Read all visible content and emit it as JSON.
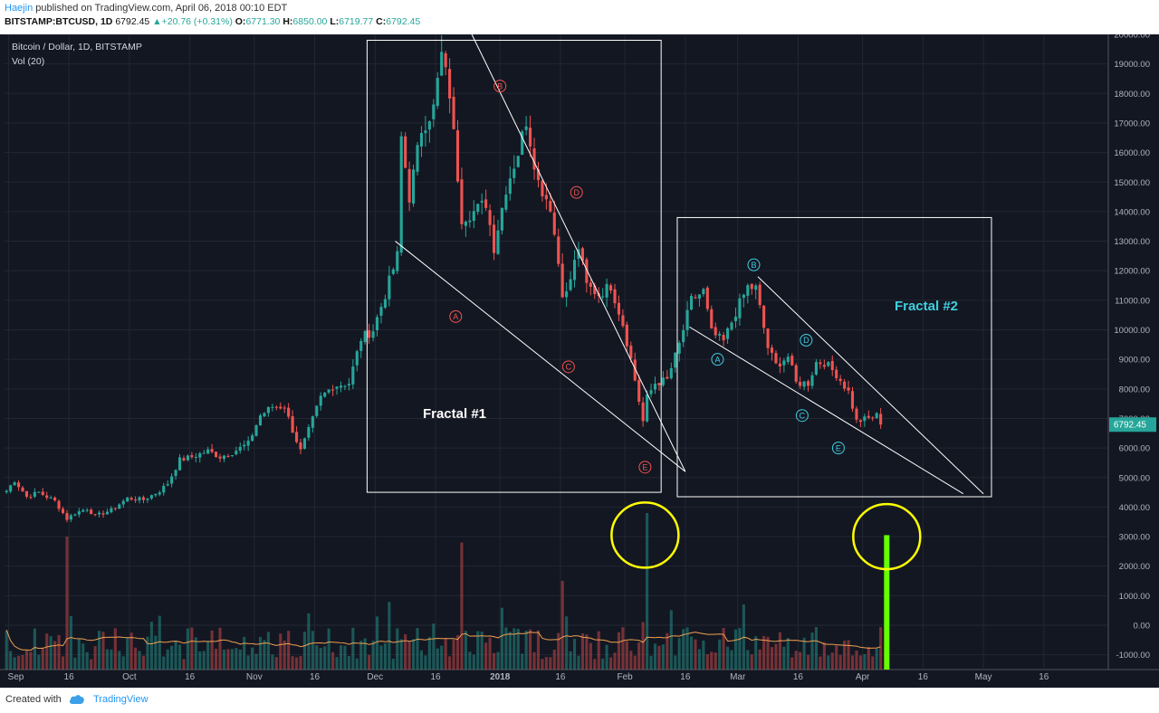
{
  "header": {
    "author": "Haejin",
    "published_text": " published on TradingView.com, April 06, 2018 00:10 EDT",
    "symbol": "BITSTAMP:BTCUSD, 1D",
    "last": "6792.45",
    "change": "+20.76 (+0.31%)",
    "o_label": "O:",
    "o_value": "6771.30",
    "h_label": "H:",
    "h_value": "6850.00",
    "l_label": "L:",
    "l_value": "6719.77",
    "c_label": "C:",
    "c_value": "6792.45"
  },
  "legend": {
    "title": "Bitcoin / Dollar, 1D, BITSTAMP",
    "volume": "Vol (20)"
  },
  "footer": {
    "created": "Created with",
    "brand": "TradingView"
  },
  "colors": {
    "background": "#131722",
    "up": "#26a69a",
    "down": "#ef5350",
    "grid": "#232732",
    "axis_text": "#b2b5be",
    "drawing": "#ffffff",
    "fractal1_labels": "#ef5350",
    "fractal2_labels": "#3fcfe0",
    "highlight_circle": "#ffff00",
    "projected_volume": "#66ff00",
    "volume_ma": "#f0a050"
  },
  "chart_data": {
    "type": "candlestick",
    "title": "Bitcoin / Dollar, 1D, BITSTAMP",
    "price_axis": {
      "ticks": [
        "20000.00",
        "19000.00",
        "18000.00",
        "17000.00",
        "16000.00",
        "15000.00",
        "14000.00",
        "13000.00",
        "12000.00",
        "11000.00",
        "10000.00",
        "9000.00",
        "8000.00",
        "7000.00",
        "6000.00",
        "5000.00",
        "4000.00",
        "3000.00",
        "2000.00",
        "1000.00",
        "0.00",
        "-1000.00"
      ],
      "range": [
        -1500,
        20000
      ]
    },
    "time_axis": {
      "labels": [
        "Sep",
        "16",
        "Oct",
        "16",
        "Nov",
        "16",
        "Dec",
        "16",
        "2018",
        "16",
        "Feb",
        "16",
        "Mar",
        "16",
        "Apr",
        "16",
        "May",
        "16"
      ],
      "range": [
        "2017-08-31",
        "2018-06-01"
      ]
    },
    "last_price": "6792.45",
    "price_waypoints": [
      [
        "2017-08-31",
        4550
      ],
      [
        "2017-09-02",
        4900
      ],
      [
        "2017-09-05",
        4350
      ],
      [
        "2017-09-08",
        4500
      ],
      [
        "2017-09-12",
        4200
      ],
      [
        "2017-09-15",
        3600
      ],
      [
        "2017-09-17",
        3800
      ],
      [
        "2017-09-20",
        3950
      ],
      [
        "2017-09-22",
        3700
      ],
      [
        "2017-09-26",
        3900
      ],
      [
        "2017-09-30",
        4300
      ],
      [
        "2017-10-04",
        4250
      ],
      [
        "2017-10-08",
        4550
      ],
      [
        "2017-10-10",
        4800
      ],
      [
        "2017-10-13",
        5600
      ],
      [
        "2017-10-16",
        5700
      ],
      [
        "2017-10-20",
        5900
      ],
      [
        "2017-10-23",
        5700
      ],
      [
        "2017-10-26",
        5850
      ],
      [
        "2017-10-30",
        6150
      ],
      [
        "2017-11-02",
        7100
      ],
      [
        "2017-11-05",
        7400
      ],
      [
        "2017-11-08",
        7400
      ],
      [
        "2017-11-10",
        6600
      ],
      [
        "2017-11-12",
        5900
      ],
      [
        "2017-11-14",
        6600
      ],
      [
        "2017-11-17",
        7700
      ],
      [
        "2017-11-20",
        8100
      ],
      [
        "2017-11-24",
        8200
      ],
      [
        "2017-11-27",
        9700
      ],
      [
        "2017-11-30",
        10000
      ],
      [
        "2017-12-03",
        11200
      ],
      [
        "2017-12-06",
        12500
      ],
      [
        "2017-12-07",
        16500
      ],
      [
        "2017-12-09",
        14500
      ],
      [
        "2017-12-12",
        16800
      ],
      [
        "2017-12-15",
        17500
      ],
      [
        "2017-12-17",
        19300
      ],
      [
        "2017-12-19",
        18000
      ],
      [
        "2017-12-22",
        13800
      ],
      [
        "2017-12-25",
        14000
      ],
      [
        "2017-12-28",
        14300
      ],
      [
        "2017-12-30",
        12800
      ],
      [
        "2018-01-02",
        14800
      ],
      [
        "2018-01-05",
        16000
      ],
      [
        "2018-01-07",
        17100
      ],
      [
        "2018-01-10",
        15000
      ],
      [
        "2018-01-13",
        14200
      ],
      [
        "2018-01-16",
        11300
      ],
      [
        "2018-01-17",
        11200
      ],
      [
        "2018-01-20",
        12800
      ],
      [
        "2018-01-22",
        11500
      ],
      [
        "2018-01-25",
        11200
      ],
      [
        "2018-01-28",
        11500
      ],
      [
        "2018-01-31",
        10200
      ],
      [
        "2018-02-02",
        9000
      ],
      [
        "2018-02-05",
        6900
      ],
      [
        "2018-02-06",
        7700
      ],
      [
        "2018-02-08",
        8200
      ],
      [
        "2018-02-11",
        8300
      ],
      [
        "2018-02-14",
        9500
      ],
      [
        "2018-02-17",
        11000
      ],
      [
        "2018-02-20",
        11300
      ],
      [
        "2018-02-22",
        9900
      ],
      [
        "2018-02-25",
        9600
      ],
      [
        "2018-02-28",
        10600
      ],
      [
        "2018-03-03",
        11450
      ],
      [
        "2018-03-05",
        11400
      ],
      [
        "2018-03-08",
        9400
      ],
      [
        "2018-03-10",
        8800
      ],
      [
        "2018-03-13",
        9100
      ],
      [
        "2018-03-15",
        8200
      ],
      [
        "2018-03-18",
        8200
      ],
      [
        "2018-03-20",
        8900
      ],
      [
        "2018-03-22",
        8900
      ],
      [
        "2018-03-25",
        8500
      ],
      [
        "2018-03-28",
        7900
      ],
      [
        "2018-03-30",
        6900
      ],
      [
        "2018-04-02",
        7000
      ],
      [
        "2018-04-04",
        7100
      ],
      [
        "2018-04-05",
        6792
      ]
    ],
    "volume_spikes": [
      [
        "2017-09-15",
        3000
      ],
      [
        "2017-12-22",
        2800
      ],
      [
        "2018-01-16",
        1500
      ],
      [
        "2018-02-06",
        3800
      ]
    ],
    "projected_volume": {
      "date": "2018-04-07",
      "value": 3050
    },
    "fractal1": {
      "label": "Fractal #1",
      "box": [
        [
          "2017-11-29",
          19800
        ],
        [
          "2018-02-10",
          4500
        ]
      ],
      "wave_labels": [
        [
          "A",
          "2017-12-21",
          10450
        ],
        [
          "B",
          "2018-01-01",
          18250
        ],
        [
          "C",
          "2018-01-18",
          8750
        ],
        [
          "D",
          "2018-01-20",
          14650
        ],
        [
          "E",
          "2018-02-06",
          5350
        ]
      ],
      "lines": [
        [
          [
            "2017-12-06",
            13000
          ],
          [
            "2018-02-16",
            5200
          ]
        ],
        [
          [
            "2017-12-25",
            20000
          ],
          [
            "2018-02-16",
            5200
          ]
        ]
      ]
    },
    "fractal2": {
      "label": "Fractal #2",
      "box": [
        [
          "2018-02-14",
          13800
        ],
        [
          "2018-05-03",
          4350
        ]
      ],
      "wave_labels": [
        [
          "A",
          "2018-02-24",
          9000
        ],
        [
          "B",
          "2018-03-05",
          12200
        ],
        [
          "C",
          "2018-03-17",
          7100
        ],
        [
          "D",
          "2018-03-18",
          9650
        ],
        [
          "E",
          "2018-03-26",
          6000
        ]
      ],
      "lines": [
        [
          [
            "2018-02-17",
            10100
          ],
          [
            "2018-04-26",
            4450
          ]
        ],
        [
          [
            "2018-03-06",
            11800
          ],
          [
            "2018-05-01",
            4450
          ]
        ]
      ]
    },
    "highlight_circles": [
      [
        "2018-02-06",
        3050
      ],
      [
        "2018-04-07",
        3000
      ]
    ],
    "legend": [
      "Bitcoin / Dollar, 1D, BITSTAMP",
      "Vol (20)"
    ]
  }
}
